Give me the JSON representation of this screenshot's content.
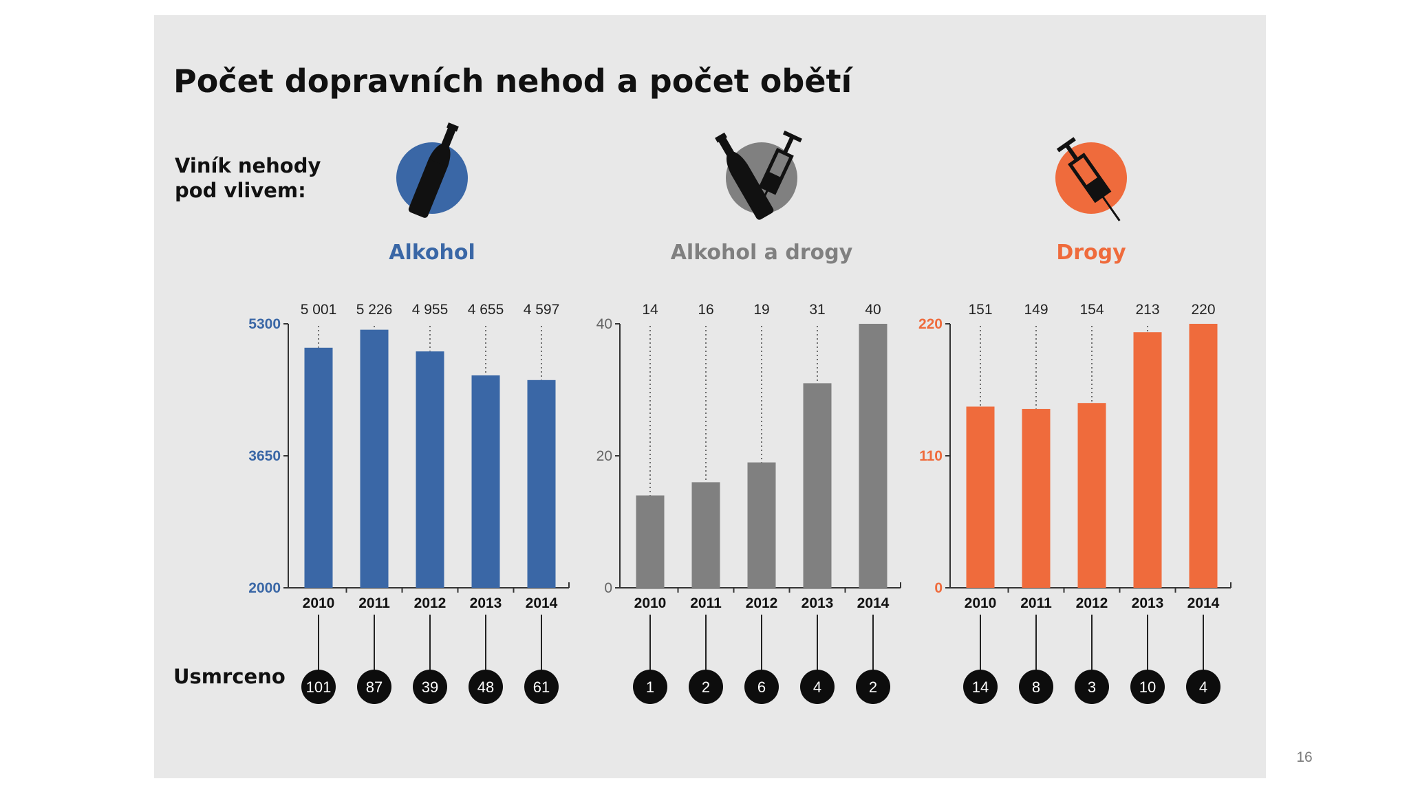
{
  "title": "Počet dopravních nehod a počet obětí",
  "subtitle_lines": [
    "Viník nehody",
    "pod vlivem:"
  ],
  "deaths_label": "Usmrceno",
  "page_number": "16",
  "colors": {
    "alkohol": "#3a67a6",
    "alkohol_drogy": "#808080",
    "drogy": "#ef6b3c"
  },
  "chart_data": [
    {
      "type": "bar",
      "title": "Alkohol",
      "icon": "bottle-icon",
      "categories": [
        "2010",
        "2011",
        "2012",
        "2013",
        "2014"
      ],
      "values": [
        5001,
        5226,
        4955,
        4655,
        4597
      ],
      "value_labels": [
        "5 001",
        "5 226",
        "4 955",
        "4 655",
        "4 597"
      ],
      "deaths": [
        "101",
        "87",
        "39",
        "48",
        "61"
      ],
      "ylim": [
        2000,
        5300
      ],
      "yticks": [
        "2000",
        "3650",
        "5300"
      ],
      "color": "#3a67a6"
    },
    {
      "type": "bar",
      "title": "Alkohol a drogy",
      "icon": "bottle-and-syringe-icon",
      "categories": [
        "2010",
        "2011",
        "2012",
        "2013",
        "2014"
      ],
      "values": [
        14,
        16,
        19,
        31,
        40
      ],
      "value_labels": [
        "14",
        "16",
        "19",
        "31",
        "40"
      ],
      "deaths": [
        "1",
        "2",
        "6",
        "4",
        "2"
      ],
      "ylim": [
        0,
        40
      ],
      "yticks": [
        "0",
        "20",
        "40"
      ],
      "color": "#808080"
    },
    {
      "type": "bar",
      "title": "Drogy",
      "icon": "syringe-icon",
      "categories": [
        "2010",
        "2011",
        "2012",
        "2013",
        "2014"
      ],
      "values": [
        151,
        149,
        154,
        213,
        220
      ],
      "value_labels": [
        "151",
        "149",
        "154",
        "213",
        "220"
      ],
      "deaths": [
        "14",
        "8",
        "3",
        "10",
        "4"
      ],
      "ylim": [
        0,
        220
      ],
      "yticks": [
        "0",
        "110",
        "220"
      ],
      "color": "#ef6b3c"
    }
  ]
}
